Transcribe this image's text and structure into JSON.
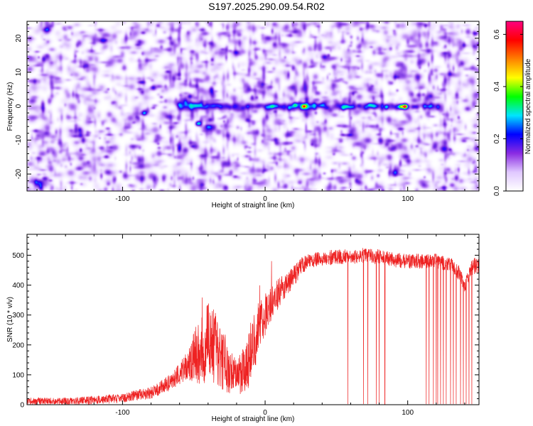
{
  "title": "S197.2025.290.09.54.R02",
  "chart_data": [
    {
      "type": "heatmap",
      "xlabel": "Height of straight line (km)",
      "ylabel": "Frequency (Hz)",
      "xlim": [
        -167,
        150
      ],
      "ylim": [
        -25,
        25
      ],
      "xticks": [
        -100,
        0,
        100
      ],
      "yticks": [
        -20,
        -10,
        0,
        10,
        20
      ],
      "colorbar": {
        "label": "Normalized spectral amplitude",
        "range": [
          0,
          0.65
        ],
        "ticks": [
          0.0,
          0.2,
          0.4,
          0.6
        ],
        "colors": [
          "#ffffff",
          "#e0c8ff",
          "#8a2be2",
          "#0000ff",
          "#00e5ff",
          "#00ff00",
          "#ffff00",
          "#ff8000",
          "#ff0000",
          "#ff0080"
        ]
      },
      "ridge": {
        "frequency_hz": 0,
        "x_range_km": [
          -60,
          125
        ],
        "peaks": [
          {
            "x_km": -47,
            "y_hz": -5,
            "amplitude": 0.25
          },
          {
            "x_km": -53,
            "y_hz": 3,
            "amplitude": 0.15
          },
          {
            "x_km": -85,
            "y_hz": -2,
            "amplitude": 0.18
          },
          {
            "x_km": 27,
            "y_hz": 0,
            "amplitude": 0.4
          },
          {
            "x_km": 21,
            "y_hz": 0.5,
            "amplitude": 0.22
          },
          {
            "x_km": 98,
            "y_hz": 0,
            "amplitude": 0.5
          },
          {
            "x_km": 95,
            "y_hz": 0,
            "amplitude": 0.3
          },
          {
            "x_km": 5,
            "y_hz": 0,
            "amplitude": 0.18
          },
          {
            "x_km": 57,
            "y_hz": 0,
            "amplitude": 0.15
          },
          {
            "x_km": 85,
            "y_hz": 0,
            "amplitude": 0.16
          }
        ]
      }
    },
    {
      "type": "line",
      "xlabel": "Height of straight line (km)",
      "ylabel": "SNR (10 * v/v)",
      "xlim": [
        -167,
        150
      ],
      "ylim": [
        0,
        570
      ],
      "xticks": [
        -100,
        0,
        100
      ],
      "yticks": [
        0,
        100,
        200,
        300,
        400,
        500
      ],
      "color": "#ee2222",
      "envelope": {
        "x": [
          -167,
          -140,
          -120,
          -100,
          -80,
          -65,
          -55,
          -48,
          -42,
          -38,
          -35,
          -30,
          -25,
          -20,
          -15,
          -10,
          -5,
          0,
          5,
          10,
          15,
          20,
          25,
          30,
          40,
          50,
          60,
          70,
          80,
          90,
          100,
          110,
          120,
          130,
          136,
          140,
          145,
          150
        ],
        "mean": [
          12,
          12,
          15,
          22,
          40,
          80,
          130,
          170,
          200,
          210,
          190,
          150,
          110,
          90,
          110,
          170,
          250,
          300,
          345,
          375,
          400,
          430,
          460,
          480,
          490,
          495,
          495,
          500,
          495,
          485,
          480,
          480,
          480,
          470,
          440,
          400,
          460,
          465
        ],
        "spread": [
          12,
          12,
          14,
          16,
          20,
          30,
          45,
          100,
          130,
          140,
          120,
          100,
          80,
          60,
          80,
          100,
          90,
          70,
          60,
          50,
          40,
          35,
          30,
          25,
          25,
          25,
          25,
          25,
          25,
          25,
          25,
          25,
          25,
          25,
          25,
          25,
          30,
          30
        ]
      },
      "dropouts_km": [
        58,
        69,
        72,
        78,
        80,
        84,
        113,
        115,
        118,
        120,
        121,
        123,
        125,
        127,
        130,
        132,
        134,
        137,
        139,
        141,
        143,
        145
      ]
    }
  ]
}
